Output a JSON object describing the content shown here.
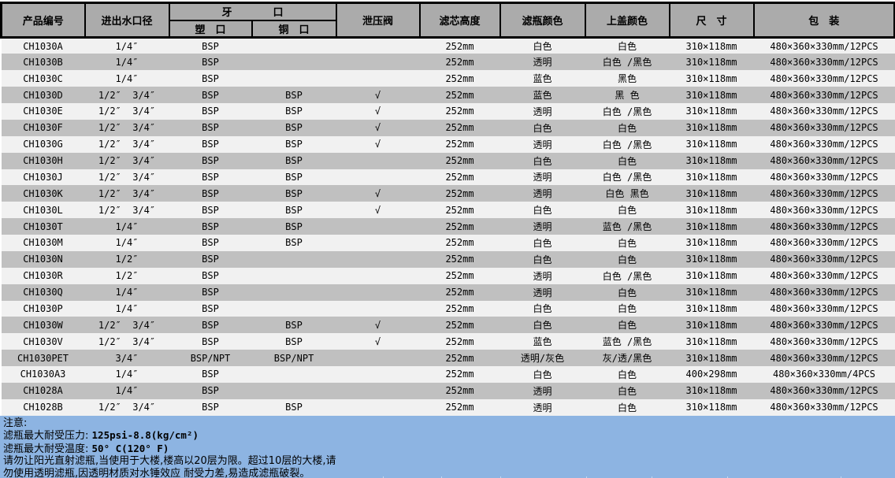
{
  "table": {
    "headers": {
      "product_code": "产品编号",
      "inlet_outlet": "进出水口径",
      "thread_group": "牙　　　　口",
      "plastic_port": "塑　口",
      "copper_port": "铜　口",
      "relief_valve": "泄压阀",
      "cartridge_height": "滤芯高度",
      "bottle_color": "滤瓶颜色",
      "cap_color": "上盖颜色",
      "size": "尺　寸",
      "packing": "包　装"
    },
    "rows": [
      [
        "CH1030A",
        "1/4″",
        "BSP",
        "",
        "",
        "252mm",
        "白色",
        "白色",
        "310×118mm",
        "480×360×330mm/12PCS"
      ],
      [
        "CH1030B",
        "1/4″",
        "BSP",
        "",
        "",
        "252mm",
        "透明",
        "白色 /黑色",
        "310×118mm",
        "480×360×330mm/12PCS"
      ],
      [
        "CH1030C",
        "1/4″",
        "BSP",
        "",
        "",
        "252mm",
        "蓝色",
        "黑色",
        "310×118mm",
        "480×360×330mm/12PCS"
      ],
      [
        "CH1030D",
        "1/2″  3/4″",
        "BSP",
        "BSP",
        "√",
        "252mm",
        "蓝色",
        "黑 色",
        "310×118mm",
        "480×360×330mm/12PCS"
      ],
      [
        "CH1030E",
        "1/2″  3/4″",
        "BSP",
        "BSP",
        "√",
        "252mm",
        "透明",
        "白色 /黑色",
        "310×118mm",
        "480×360×330mm/12PCS"
      ],
      [
        "CH1030F",
        "1/2″  3/4″",
        "BSP",
        "BSP",
        "√",
        "252mm",
        "白色",
        "白色",
        "310×118mm",
        "480×360×330mm/12PCS"
      ],
      [
        "CH1030G",
        "1/2″  3/4″",
        "BSP",
        "BSP",
        "√",
        "252mm",
        "透明",
        "白色 /黑色",
        "310×118mm",
        "480×360×330mm/12PCS"
      ],
      [
        "CH1030H",
        "1/2″  3/4″",
        "BSP",
        "BSP",
        "",
        "252mm",
        "白色",
        "白色",
        "310×118mm",
        "480×360×330mm/12PCS"
      ],
      [
        "CH1030J",
        "1/2″  3/4″",
        "BSP",
        "BSP",
        "",
        "252mm",
        "透明",
        "白色 /黑色",
        "310×118mm",
        "480×360×330mm/12PCS"
      ],
      [
        "CH1030K",
        "1/2″  3/4″",
        "BSP",
        "BSP",
        "√",
        "252mm",
        "透明",
        "白色 黑色",
        "310×118mm",
        "480×360×330mm/12PCS"
      ],
      [
        "CH1030L",
        "1/2″  3/4″",
        "BSP",
        "BSP",
        "√",
        "252mm",
        "白色",
        "白色",
        "310×118mm",
        "480×360×330mm/12PCS"
      ],
      [
        "CH1030T",
        "1/4″",
        "BSP",
        "BSP",
        "",
        "252mm",
        "透明",
        "蓝色 /黑色",
        "310×118mm",
        "480×360×330mm/12PCS"
      ],
      [
        "CH1030M",
        "1/4″",
        "BSP",
        "BSP",
        "",
        "252mm",
        "白色",
        "白色",
        "310×118mm",
        "480×360×330mm/12PCS"
      ],
      [
        "CH1030N",
        "1/2″",
        "BSP",
        "",
        "",
        "252mm",
        "白色",
        "白色",
        "310×118mm",
        "480×360×330mm/12PCS"
      ],
      [
        "CH1030R",
        "1/2″",
        "BSP",
        "",
        "",
        "252mm",
        "透明",
        "白色 /黑色",
        "310×118mm",
        "480×360×330mm/12PCS"
      ],
      [
        "CH1030Q",
        "1/4″",
        "BSP",
        "",
        "",
        "252mm",
        "透明",
        "白色",
        "310×118mm",
        "480×360×330mm/12PCS"
      ],
      [
        "CH1030P",
        "1/4″",
        "BSP",
        "",
        "",
        "252mm",
        "白色",
        "白色",
        "310×118mm",
        "480×360×330mm/12PCS"
      ],
      [
        "CH1030W",
        "1/2″  3/4″",
        "BSP",
        "BSP",
        "√",
        "252mm",
        "白色",
        "白色",
        "310×118mm",
        "480×360×330mm/12PCS"
      ],
      [
        "CH1030V",
        "1/2″  3/4″",
        "BSP",
        "BSP",
        "√",
        "252mm",
        "蓝色",
        "蓝色 /黑色",
        "310×118mm",
        "480×360×330mm/12PCS"
      ],
      [
        "CH1030PET",
        "3/4″",
        "BSP/NPT",
        "BSP/NPT",
        "",
        "252mm",
        "透明/灰色",
        "灰/透/黑色",
        "310×118mm",
        "480×360×330mm/12PCS"
      ],
      [
        "CH1030A3",
        "1/4″",
        "BSP",
        "",
        "",
        "252mm",
        "白色",
        "白色",
        "400×298mm",
        "480×360×330mm/4PCS"
      ],
      [
        "CH1028A",
        "1/4″",
        "BSP",
        "",
        "",
        "252mm",
        "透明",
        "白色",
        "310×118mm",
        "480×360×330mm/12PCS"
      ],
      [
        "CH1028B",
        "1/2″  3/4″",
        "BSP",
        "BSP",
        "",
        "252mm",
        "透明",
        "白色",
        "310×118mm",
        "480×360×330mm/12PCS"
      ]
    ]
  },
  "note": {
    "title": "注意:",
    "pressure_label": "滤瓶最大耐受压力: ",
    "pressure_value": "125psi-8.8(kg/cm²)",
    "temperature_label": "滤瓶最大耐受温度: ",
    "temperature_value": "50° C(120° F)",
    "line4": "请勿让阳光直射滤瓶,当使用于大楼,楼高以20层为限。超过10层的大楼,请",
    "line5": "勿使用透明滤瓶,因透明材质对水锤效应 耐受力差,易造成滤瓶破裂。"
  },
  "colors": {
    "header_bg": "#ababab",
    "row_light": "#f1f1f1",
    "row_dark": "#c0c0c0",
    "note_bg": "#8db4e2",
    "border": "#000000"
  }
}
